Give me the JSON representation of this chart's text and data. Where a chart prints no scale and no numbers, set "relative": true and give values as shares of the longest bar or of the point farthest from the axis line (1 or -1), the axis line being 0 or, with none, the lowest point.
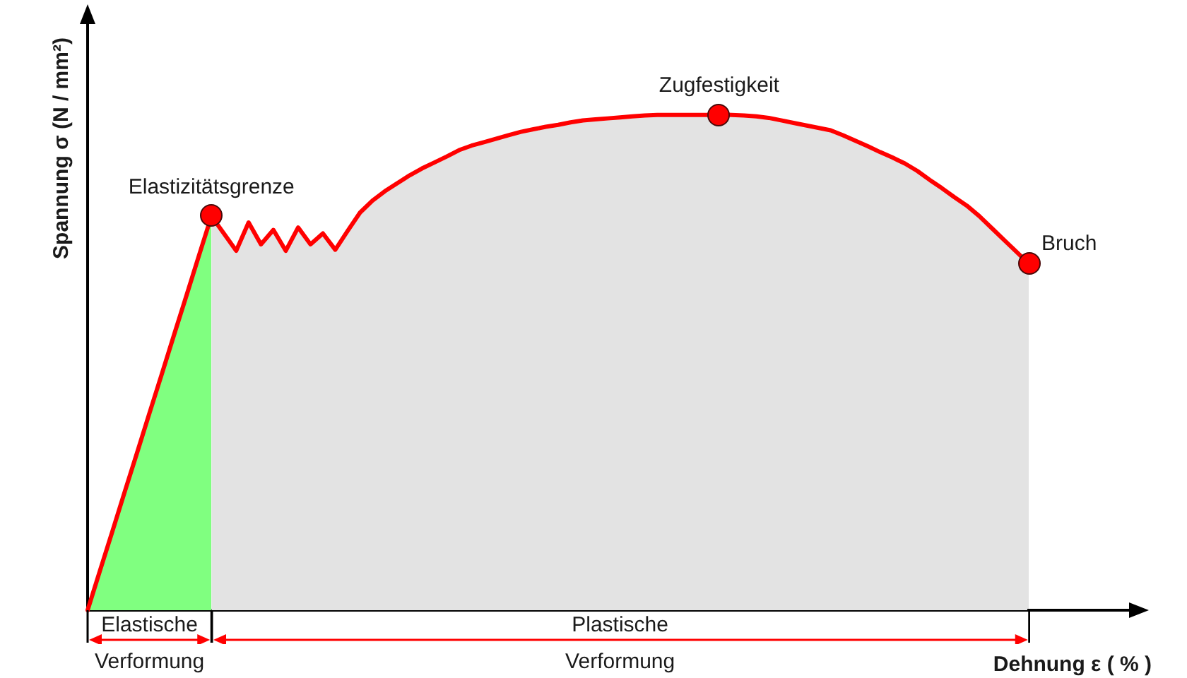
{
  "chart_data": {
    "type": "line",
    "relative": true,
    "tick_labels": false,
    "xlabel": "Dehnung ε ( % )",
    "ylabel": "Spannung σ (N / mm²)",
    "categories": [
      null,
      null,
      null,
      null,
      null,
      null,
      null,
      null,
      null,
      null,
      null,
      null,
      null,
      null,
      null,
      null,
      null,
      null,
      null,
      null,
      null,
      null,
      null,
      null,
      null,
      null,
      null,
      null,
      null,
      null,
      null,
      null,
      null,
      null,
      null,
      null,
      null,
      null,
      null,
      null,
      null,
      null,
      null,
      null,
      null,
      null,
      null,
      null,
      null,
      null,
      null,
      null,
      null,
      null,
      null,
      null,
      null,
      null,
      null,
      null,
      null,
      null,
      null,
      null,
      null,
      null,
      null,
      null,
      null,
      null,
      null,
      null,
      null,
      null,
      null,
      null,
      null
    ],
    "series": [
      {
        "type": "area",
        "color": "#80ff80",
        "values": [
          0,
          0.08,
          0.159,
          0.239,
          0.318,
          0.398,
          0.477,
          0.557,
          0.636,
          0.716,
          0.795,
          null,
          null,
          null,
          null,
          null,
          null,
          null,
          null,
          null,
          null,
          null,
          null,
          null,
          null,
          null,
          null,
          null,
          null,
          null,
          null,
          null,
          null,
          null,
          null,
          null,
          null,
          null,
          null,
          null,
          null,
          null,
          null,
          null,
          null,
          null,
          null,
          null,
          null,
          null,
          null,
          null,
          null,
          null,
          null,
          null,
          null,
          null,
          null,
          null,
          null,
          null,
          null,
          null,
          null,
          null,
          null,
          null,
          null,
          null,
          null,
          null,
          null,
          null,
          null,
          null,
          null
        ]
      },
      {
        "type": "area",
        "color": "#e3e3e3",
        "values": [
          null,
          null,
          null,
          null,
          null,
          null,
          null,
          null,
          null,
          null,
          0.795,
          0.76,
          0.725,
          0.782,
          0.738,
          0.767,
          0.725,
          0.772,
          0.738,
          0.76,
          0.727,
          0.765,
          0.802,
          0.826,
          0.845,
          0.861,
          0.877,
          0.891,
          0.903,
          0.915,
          0.928,
          0.937,
          0.944,
          0.951,
          0.958,
          0.965,
          0.97,
          0.975,
          0.979,
          0.984,
          0.988,
          0.99,
          0.992,
          0.994,
          0.996,
          0.998,
          0.999,
          0.999,
          0.999,
          0.999,
          0.999,
          1,
          0.999,
          0.998,
          0.996,
          0.993,
          0.988,
          0.983,
          0.978,
          0.973,
          0.968,
          0.958,
          0.947,
          0.936,
          0.924,
          0.913,
          0.901,
          0.886,
          0.868,
          0.851,
          0.833,
          0.816,
          0.795,
          0.771,
          0.747,
          0.723,
          0.699
        ]
      },
      {
        "color": "#ff0000",
        "marker": "none",
        "values": [
          0,
          0.08,
          0.159,
          0.239,
          0.318,
          0.398,
          0.477,
          0.557,
          0.636,
          0.716,
          0.795,
          0.76,
          0.725,
          0.782,
          0.738,
          0.767,
          0.725,
          0.772,
          0.738,
          0.76,
          0.727,
          0.765,
          0.802,
          0.826,
          0.845,
          0.861,
          0.877,
          0.891,
          0.903,
          0.915,
          0.928,
          0.937,
          0.944,
          0.951,
          0.958,
          0.965,
          0.97,
          0.975,
          0.979,
          0.984,
          0.988,
          0.99,
          0.992,
          0.994,
          0.996,
          0.998,
          0.999,
          0.999,
          0.999,
          0.999,
          0.999,
          1,
          0.999,
          0.998,
          0.996,
          0.993,
          0.988,
          0.983,
          0.978,
          0.973,
          0.968,
          0.958,
          0.947,
          0.936,
          0.924,
          0.913,
          0.901,
          0.886,
          0.868,
          0.851,
          0.833,
          0.816,
          0.795,
          0.771,
          0.747,
          0.723,
          0.699
        ]
      }
    ],
    "annotations": [
      {
        "text": "Elastizitätsgrenze",
        "y": 0.795
      },
      {
        "text": "Zugfestigkeit",
        "y": 1
      },
      "Elastische Verformung",
      "Plastische Verformung",
      "Bruch"
    ]
  }
}
